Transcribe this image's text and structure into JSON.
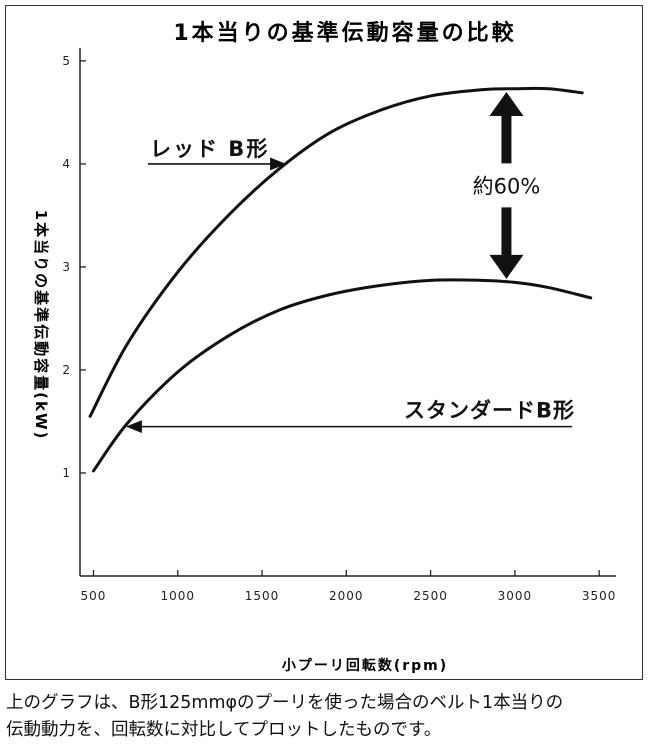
{
  "chart_data": {
    "type": "line",
    "title": "1本当りの基準伝動容量の比較",
    "xlabel": "小プーリ回転数(rpm)",
    "ylabel": "1本当りの基準伝動容量(kW)",
    "xlim": [
      420,
      3600
    ],
    "ylim": [
      0,
      5.3
    ],
    "xticks": [
      500,
      1000,
      1500,
      2000,
      2500,
      3000,
      3500
    ],
    "xtick_labels": [
      "500",
      "1000",
      "1500",
      "2000",
      "2500",
      "3000",
      "3500"
    ],
    "yticks": [
      1,
      2,
      3,
      4,
      5
    ],
    "ytick_labels": [
      "1",
      "2",
      "3",
      "4",
      "5"
    ],
    "grid": false,
    "series": [
      {
        "name": "レッド B形",
        "x": [
          480,
          700,
          1000,
          1300,
          1600,
          1900,
          2200,
          2500,
          2800,
          3000,
          3200,
          3400
        ],
        "y": [
          1.55,
          2.25,
          2.95,
          3.5,
          3.95,
          4.3,
          4.52,
          4.66,
          4.72,
          4.73,
          4.73,
          4.69
        ]
      },
      {
        "name": "スタンダードB形",
        "x": [
          500,
          700,
          1000,
          1300,
          1600,
          1900,
          2200,
          2500,
          2800,
          3000,
          3200,
          3450
        ],
        "y": [
          1.02,
          1.48,
          1.98,
          2.33,
          2.58,
          2.73,
          2.82,
          2.87,
          2.87,
          2.85,
          2.8,
          2.7
        ]
      }
    ],
    "annotations": [
      {
        "text": "レッド B形",
        "points_to_series": 0,
        "points_to_x": 1900
      },
      {
        "text": "スタンダードB形",
        "points_to_series": 1,
        "points_to_x": 850
      },
      {
        "text": "約60%",
        "between_series": [
          0,
          1
        ],
        "at_x": 2950
      }
    ]
  },
  "caption": [
    "上のグラフは、B形125mmφのプーリを使った場合のベルト1本当りの",
    "伝動動力を、回転数に対比してプロットしたものです。"
  ]
}
